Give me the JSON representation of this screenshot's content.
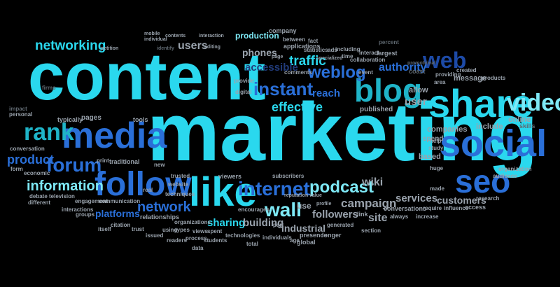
{
  "colors": {
    "background": "#000000",
    "cyan": "#2ad8ee",
    "light_cyan": "#7ee9f6",
    "teal": "#1fb4c8",
    "blue": "#2a6fd8",
    "dark_blue": "#1d4aa6",
    "navy": "#213b7a",
    "gray": "#9aa3ad",
    "dim_gray": "#5f6870"
  },
  "words": {
    "content": "content",
    "marketing": "marketing",
    "share": "share",
    "social": "social",
    "seo": "seo",
    "media": "media",
    "video": "video",
    "like": "like",
    "follow": "follow",
    "blog": "blog",
    "rank": "rank",
    "web": "web",
    "internet": "internet",
    "instant": "instant",
    "forum": "forum",
    "podcast": "podcast",
    "wall": "wall",
    "weblog": "weblog",
    "network": "network",
    "networking": "networking",
    "information": "information",
    "product": "product",
    "effective": "effective",
    "traffic": "traffic",
    "authority": "authority",
    "accessible": "accessible",
    "phones": "phones",
    "users": "users",
    "production": "production",
    "wiki": "wiki",
    "reach": "reach",
    "campaign": "campaign",
    "followers": "followers",
    "services": "services",
    "customers": "customers",
    "sharing": "sharing",
    "building": "building",
    "industrial": "industrial",
    "platforms": "platforms",
    "site": "site",
    "companies": "companies",
    "user": "user",
    "allow": "allow",
    "coast": "coast",
    "published": "published",
    "include": "include",
    "spend": "spend",
    "based": "based",
    "online": "online",
    "skills": "skills",
    "message": "message",
    "created": "created",
    "products": "products",
    "company": "company",
    "largest": "largest",
    "percent": "percent",
    "applications": "applications",
    "statistics": "statistics",
    "pages": "pages",
    "tools": "tools",
    "typically": "typically",
    "personal": "personal",
    "impact": "impact",
    "firms": "firms",
    "conversation": "conversation",
    "traditional": "traditional",
    "relationships": "relationships",
    "interactions": "interactions",
    "groups": "groups",
    "engagement": "engagement",
    "communication": "communication",
    "citation": "citation",
    "trust": "trust",
    "issued": "issued",
    "readers": "readers",
    "organizations": "organizations",
    "technologies": "technologies",
    "individuals": "individuals",
    "total": "total",
    "data": "data",
    "students": "students",
    "views": "views",
    "spent": "spent",
    "process": "process",
    "types": "types",
    "using": "using",
    "itself": "itself",
    "different": "different",
    "debate": "debate",
    "television": "television",
    "economic": "economic",
    "form": "form",
    "real": "real",
    "print": "print",
    "new": "new",
    "viewers": "viewers",
    "trusted": "trusted",
    "techniques": "techniques",
    "subscribers": "subscribers",
    "encourages": "encourages",
    "generated": "generated",
    "presence": "presence",
    "longer": "longer",
    "global": "global",
    "age": "age",
    "part": "part",
    "link": "link",
    "always": "always",
    "section": "section",
    "conversations": "conversations",
    "require": "require",
    "influence": "influence",
    "access": "access",
    "increase": "increase",
    "research": "research",
    "huge": "huge",
    "made": "made",
    "organization": "organization",
    "audience": "audience",
    "help": "help",
    "study": "study",
    "area": "area",
    "providing": "providing",
    "promotional": "promotional",
    "event": "event",
    "interact": "interact",
    "collaboration": "collaboration",
    "including": "including",
    "ads": "ads",
    "time": "time",
    "fact": "fact",
    "between": "between",
    "specialized": "specialized",
    "comments": "comments",
    "page": "page",
    "provide": "provide",
    "digital": "digital",
    "mobile": "mobile",
    "individual": "individual",
    "contents": "contents",
    "interaction": "interaction",
    "editing": "editing",
    "identify": "identify",
    "petition": "petition",
    "website": "website",
    "reputation": "reputation",
    "profile": "profile",
    "value": "value",
    "use": "use"
  }
}
